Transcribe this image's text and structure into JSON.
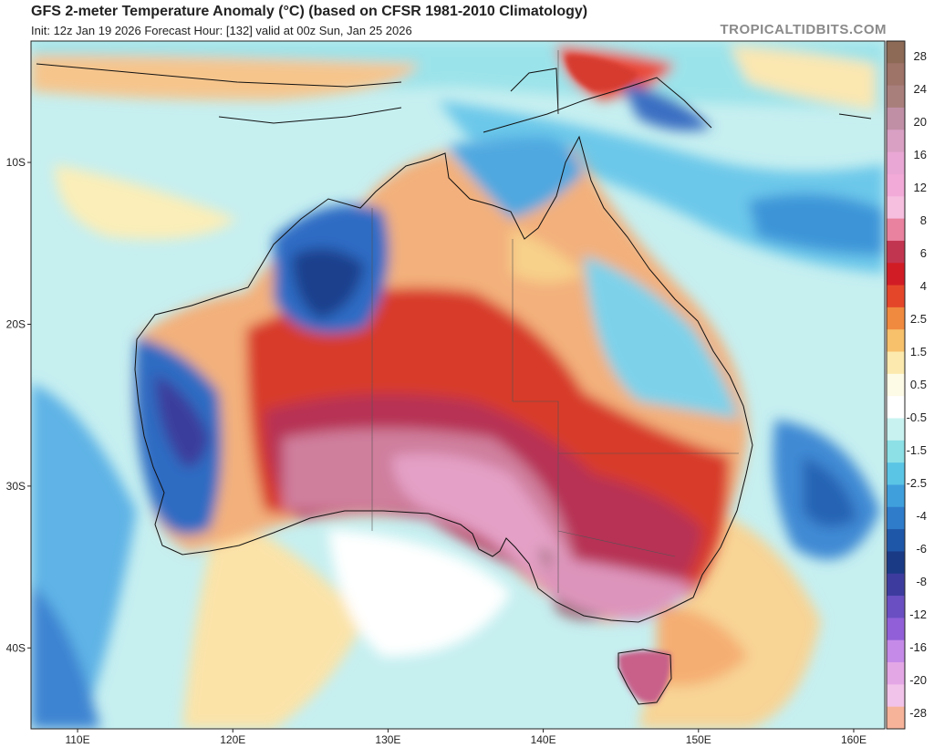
{
  "header": {
    "title": "GFS 2-meter Temperature Anomaly (°C) (based on CFSR 1981-2010 Climatology)",
    "subtitle": "Init: 12z Jan 19 2026   Forecast Hour: [132]   valid at 00z Sun, Jan 25 2026",
    "credit": "TROPICALTIDBITS.COM"
  },
  "map": {
    "lat_labels": [
      "10S",
      "20S",
      "30S",
      "40S"
    ],
    "lon_labels": [
      "110E",
      "120E",
      "130E",
      "140E",
      "150E",
      "160E"
    ],
    "lat_range": [
      -45,
      -2.5
    ],
    "lon_range": [
      107,
      162
    ]
  },
  "colorbar": {
    "labels": [
      "28",
      "24",
      "20",
      "16",
      "12",
      "8",
      "6",
      "4",
      "2.5",
      "1.5",
      "0.5",
      "-0.5",
      "-1.5",
      "-2.5",
      "-4",
      "-6",
      "-8",
      "-12",
      "-16",
      "-20",
      "-28"
    ],
    "colors": [
      "#8c6a55",
      "#9e7368",
      "#a97f7c",
      "#c08fa6",
      "#d9a0c4",
      "#e8a7d4",
      "#f2aad8",
      "#f6bedf",
      "#e9829e",
      "#c23550",
      "#d11c25",
      "#e4462a",
      "#f08a3e",
      "#f7c06b",
      "#fbe9ad",
      "#fdfbe6",
      "#ffffff",
      "#c8f2f0",
      "#8ce0e6",
      "#5bc5e6",
      "#3f9fdc",
      "#2f7ccb",
      "#1e57a8",
      "#1a3a86",
      "#3d3c9e",
      "#6a4fc2",
      "#9160d8",
      "#c58ae8",
      "#e4a7e6",
      "#f2c3ea",
      "#f7b39a"
    ]
  }
}
